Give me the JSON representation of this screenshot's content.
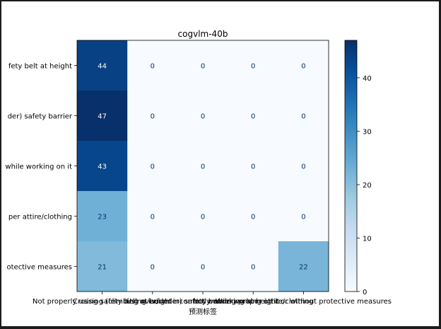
{
  "chart_data": {
    "type": "heatmap",
    "title": "cogvlm-40b",
    "xlabel": "预测标签",
    "ylabel": "",
    "row_labels": [
      "Not using safety belt at height",
      "Crossing (climbing over/under) safety barrier",
      "Using ladder incorrectly while working on it",
      "Not wearing proper attire/clothing",
      "Working at height without protective measures"
    ],
    "col_labels": [
      "Not properly using safety belt at height",
      "Crossing (climbing over/under) safety barrier",
      "Using ladder incorrectly while working on it",
      "Not wearing proper attire/clothing",
      "Working at height or without protective measures"
    ],
    "row_tick_labels": [
      "fety belt at height",
      "der) safety barrier",
      "while working on it",
      "per attire/clothing",
      "otective measures"
    ],
    "col_tick_labels": [
      "Not properly using safety belt at height",
      "Crossing (climbing over/under) safety barrier",
      "Using ladder incorrectly while working on it",
      "Not wearing proper attire/clothing",
      "Working at height or without protective measures"
    ],
    "values": [
      [
        44,
        0,
        0,
        0,
        0
      ],
      [
        47,
        0,
        0,
        0,
        0
      ],
      [
        43,
        0,
        0,
        0,
        0
      ],
      [
        23,
        0,
        0,
        0,
        0
      ],
      [
        21,
        0,
        0,
        0,
        22
      ]
    ],
    "vmin": 0,
    "vmax": 47,
    "colormap": "Blues",
    "colorbar_ticks": [
      0,
      10,
      20,
      30,
      40
    ],
    "grid": false
  }
}
